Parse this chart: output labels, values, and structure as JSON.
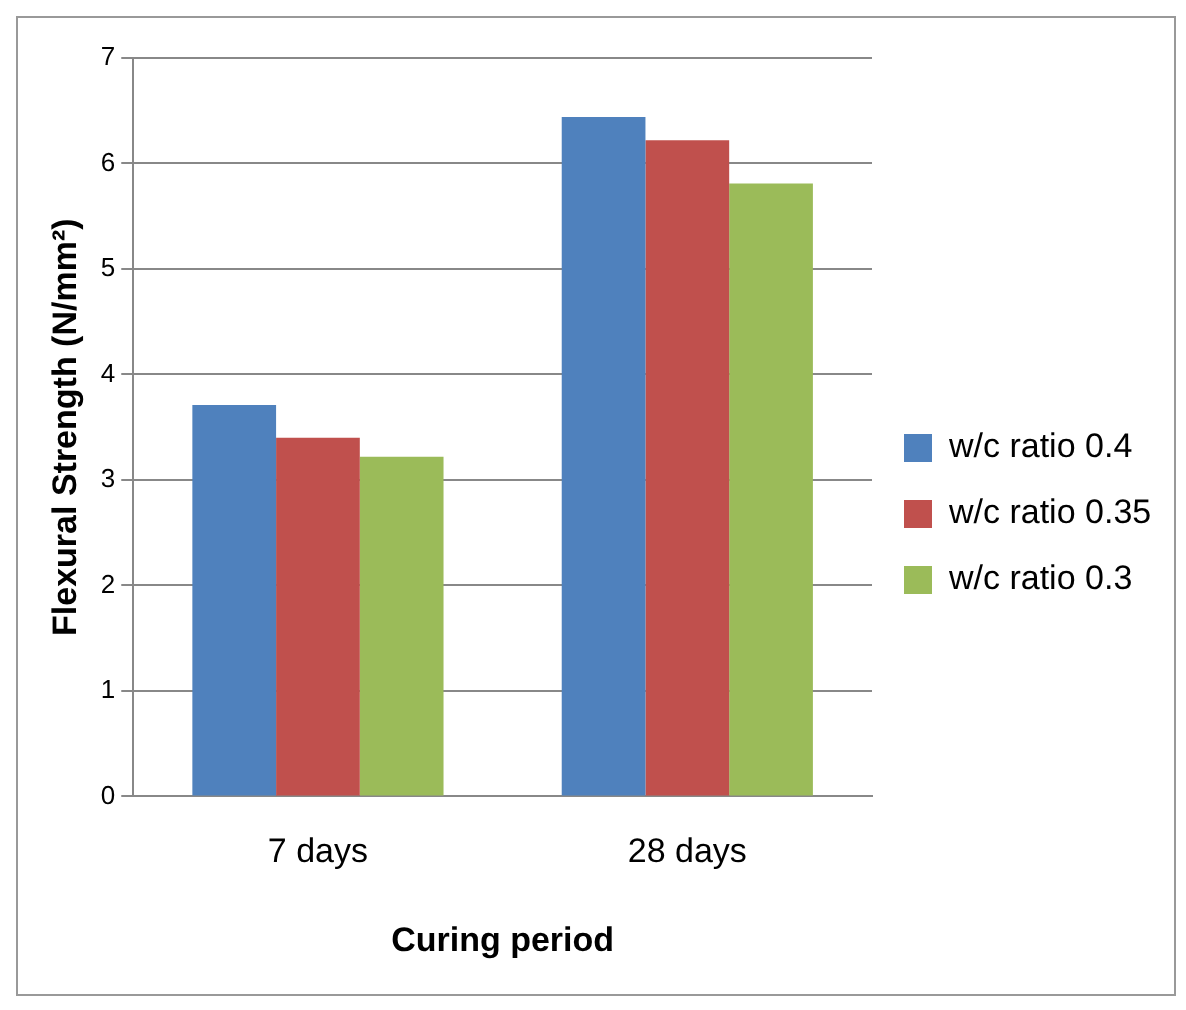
{
  "chart_data": {
    "type": "bar",
    "xlabel": "Curing period",
    "ylabel": "Flexural Strength (N/mm²)",
    "categories": [
      "7 days",
      "28 days"
    ],
    "series": [
      {
        "name": "w/c ratio 0.4",
        "color": "#4f81bd",
        "values": [
          3.71,
          6.44
        ]
      },
      {
        "name": "w/c ratio 0.35",
        "color": "#c0504d",
        "values": [
          3.4,
          6.22
        ]
      },
      {
        "name": "w/c ratio 0.3",
        "color": "#9bbb59",
        "values": [
          3.22,
          5.81
        ]
      }
    ],
    "ylim": [
      0,
      7
    ],
    "yticks": [
      0,
      1,
      2,
      3,
      4,
      5,
      6,
      7
    ],
    "grid": "y",
    "legend": "right"
  }
}
